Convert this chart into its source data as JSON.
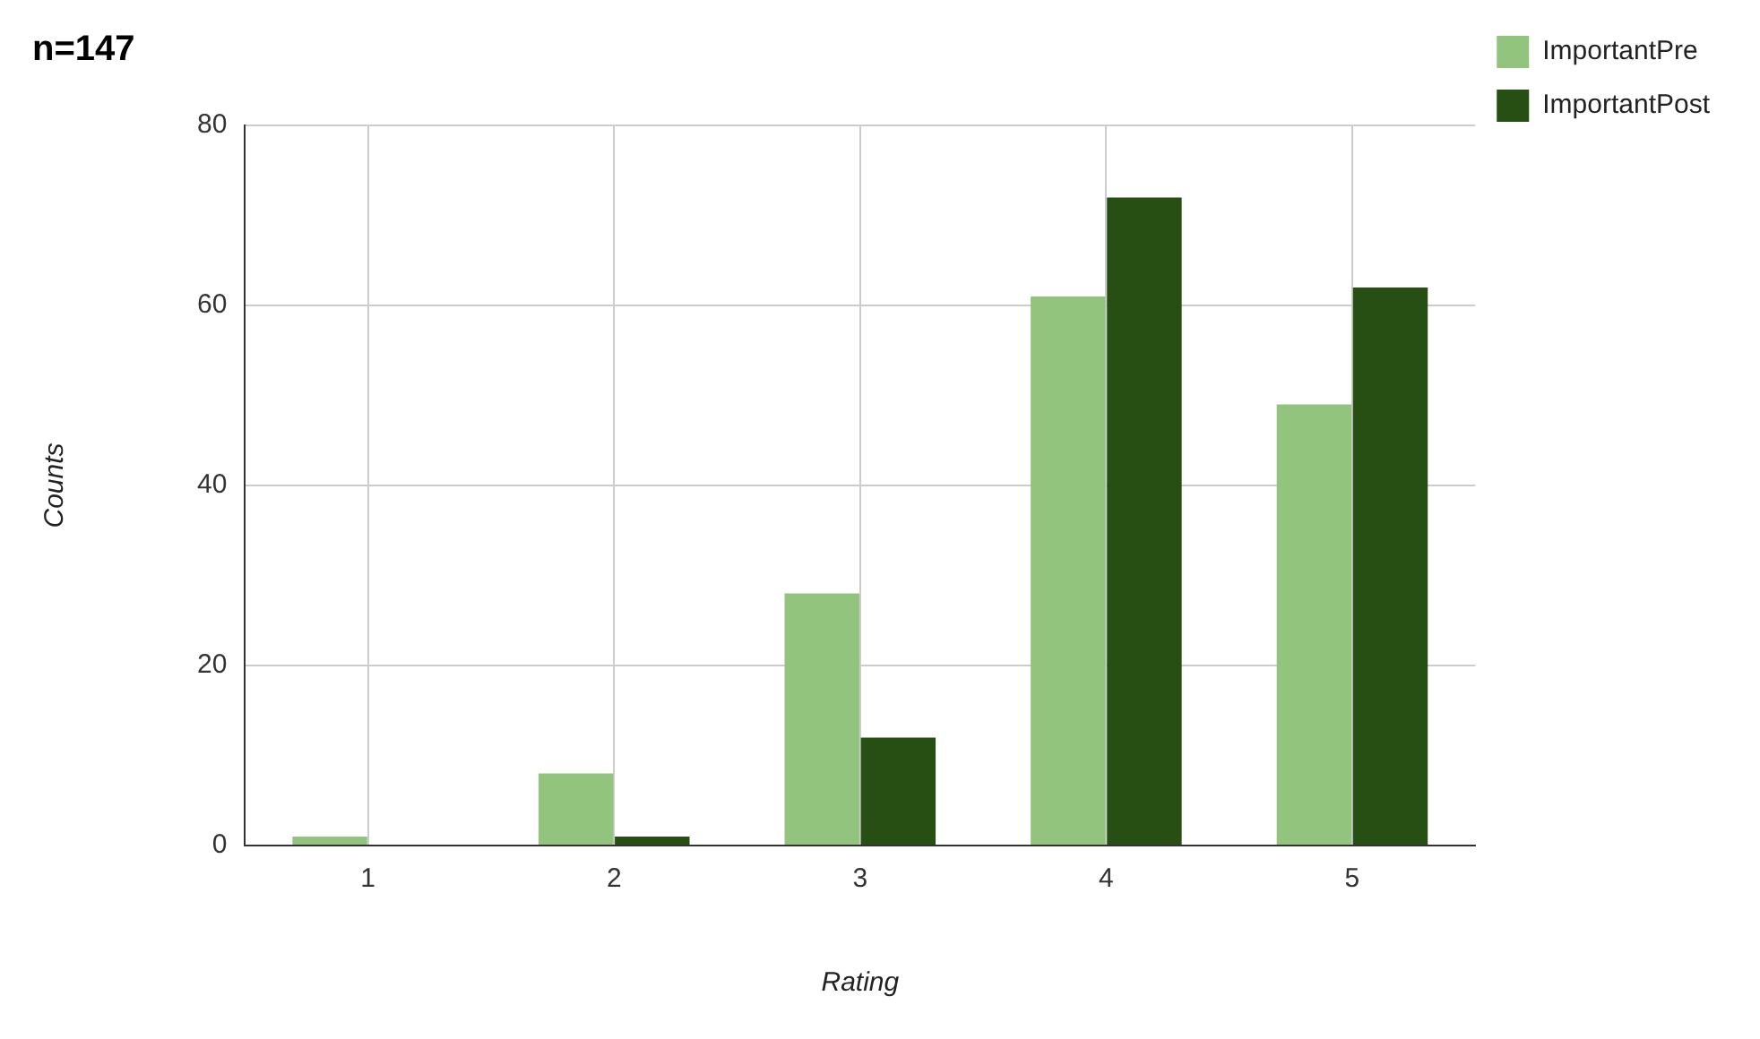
{
  "chart_data": {
    "type": "bar",
    "title": "n=147",
    "xlabel": "Rating",
    "ylabel": "Counts",
    "categories": [
      "1",
      "2",
      "3",
      "4",
      "5"
    ],
    "series": [
      {
        "name": "ImportantPre",
        "color": "#93c47d",
        "values": [
          1,
          8,
          28,
          61,
          49
        ]
      },
      {
        "name": "ImportantPost",
        "color": "#274e13",
        "values": [
          0,
          1,
          12,
          72,
          62
        ]
      }
    ],
    "ylim": [
      0,
      80
    ],
    "yticks": [
      0,
      20,
      40,
      60,
      80
    ],
    "grid": true,
    "legend": "top right"
  }
}
